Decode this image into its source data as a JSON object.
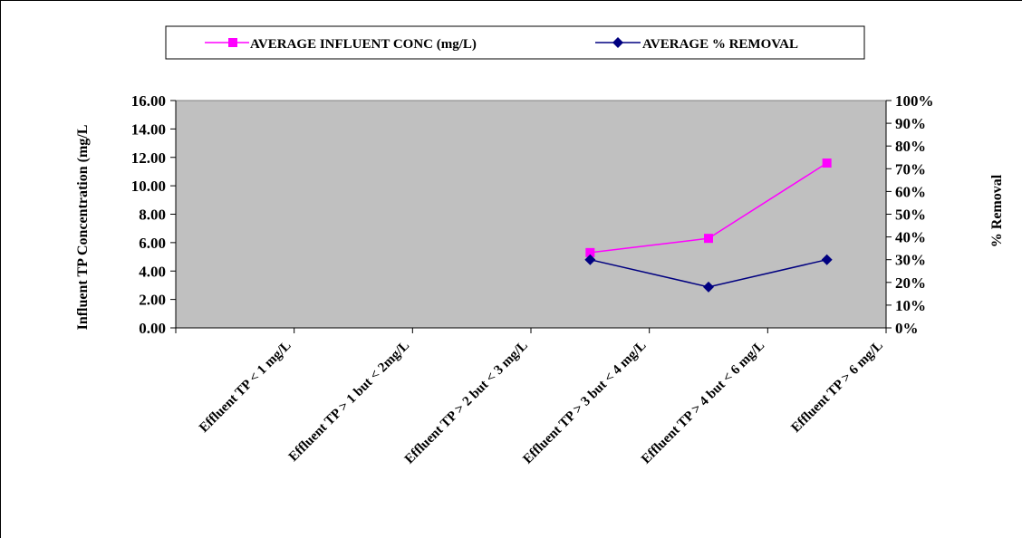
{
  "chart_data": {
    "type": "line",
    "categories": [
      "Effluent TP < 1 mg/L",
      "Effluent TP  > 1 but < 2mg/L",
      "Effluent TP > 2  but < 3 mg/L",
      "Effluent TP > 3  but < 4 mg/L",
      "Effluent TP > 4  but < 6 mg/L",
      "Effluent TP > 6 mg/L"
    ],
    "series": [
      {
        "name": "AVERAGE INFLUENT CONC (mg/L)",
        "axis": "left",
        "color": "#ff00ff",
        "marker": "square",
        "values": [
          null,
          null,
          null,
          5.3,
          6.3,
          11.6
        ]
      },
      {
        "name": "AVERAGE %  REMOVAL",
        "axis": "right",
        "color": "#000080",
        "marker": "diamond",
        "values": [
          null,
          null,
          null,
          0.3,
          0.18,
          0.3
        ]
      }
    ],
    "ylabel": "Influent TP Concentration (mg/L",
    "ylabel_right": "% Removal",
    "ylim": [
      0,
      16
    ],
    "ylim_right": [
      0,
      1
    ],
    "yticks": [
      "0.00",
      "2.00",
      "4.00",
      "6.00",
      "8.00",
      "10.00",
      "12.00",
      "14.00",
      "16.00"
    ],
    "yticks_right": [
      "0%",
      "10%",
      "20%",
      "30%",
      "40%",
      "50%",
      "60%",
      "70%",
      "80%",
      "90%",
      "100%"
    ],
    "plot_background": "#c0c0c0",
    "grid": false,
    "legend_position": "top"
  }
}
